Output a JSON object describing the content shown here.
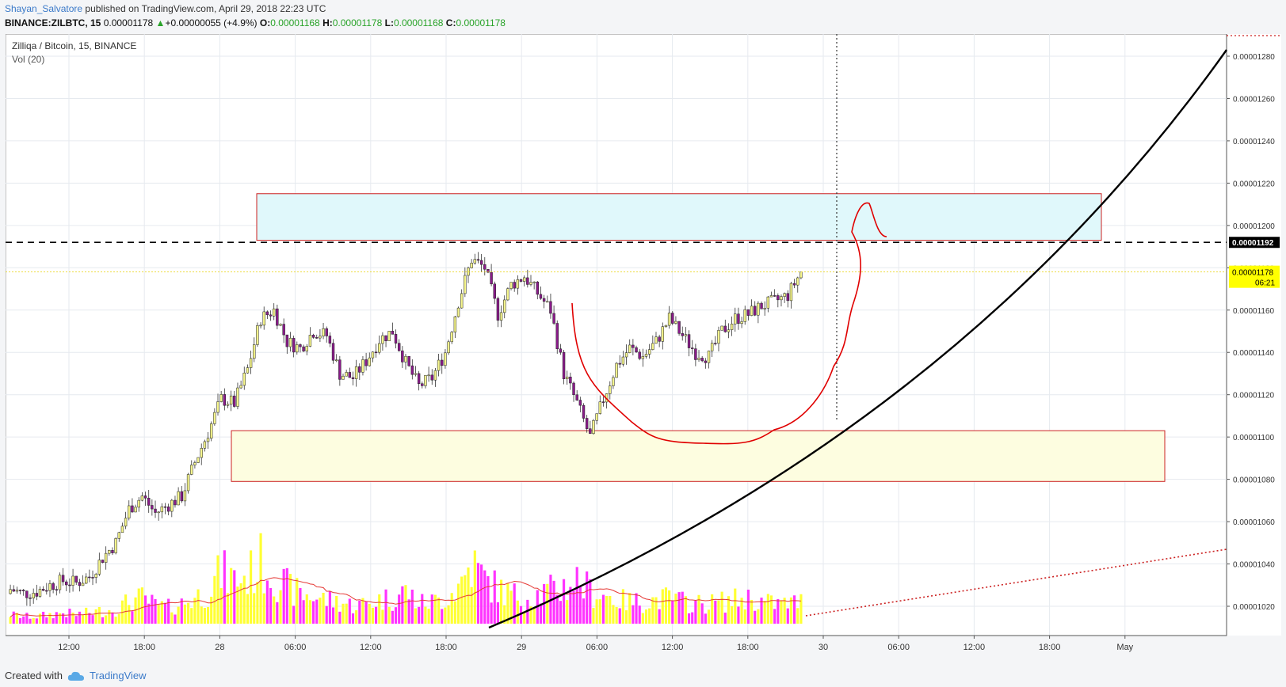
{
  "header": {
    "author": "Shayan_Salvatore",
    "published": "published on TradingView.com, April 29, 2018 22:23 UTC",
    "symbol": "BINANCE:ZILBTC, 15",
    "last": "0.00001178",
    "arrow": "▲",
    "change": "+0.00000055 (+4.9%)",
    "o_label": "O:",
    "o_value": "0.00001168",
    "h_label": "H:",
    "h_value": "0.00001178",
    "l_label": "L:",
    "l_value": "0.00001168",
    "c_label": "C:",
    "c_value": "0.00001178"
  },
  "legend": {
    "title": "Zilliqa / Bitcoin, 15, BINANCE",
    "volume": "Vol (20)"
  },
  "footer": {
    "created": "Created with",
    "brand": "TradingView"
  },
  "chart_data": {
    "type": "candlestick",
    "title": "Zilliqa / Bitcoin, 15, BINANCE",
    "price_axis_ticks": [
      "0.00001280",
      "0.00001260",
      "0.00001240",
      "0.00001220",
      "0.00001200",
      "0.00001180",
      "0.00001160",
      "0.00001140",
      "0.00001120",
      "0.00001100",
      "0.00001080",
      "0.00001060",
      "0.00001040",
      "0.00001020"
    ],
    "price_range": [
      1.011e-05,
      1.295e-05
    ],
    "time_axis_ticks": [
      "12:00",
      "18:00",
      "28",
      "06:00",
      "12:00",
      "18:00",
      "29",
      "06:00",
      "12:00",
      "18:00",
      "30",
      "06:00",
      "12:00",
      "18:00",
      "May"
    ],
    "price_path": [
      [
        0,
        1028
      ],
      [
        12,
        1026
      ],
      [
        24,
        1027
      ],
      [
        36,
        1030
      ],
      [
        48,
        1032
      ],
      [
        60,
        1031
      ],
      [
        72,
        1034
      ],
      [
        84,
        1043
      ],
      [
        96,
        1050
      ],
      [
        108,
        1066
      ],
      [
        120,
        1072
      ],
      [
        132,
        1064
      ],
      [
        144,
        1068
      ],
      [
        156,
        1072
      ],
      [
        168,
        1088
      ],
      [
        180,
        1102
      ],
      [
        192,
        1118
      ],
      [
        204,
        1116
      ],
      [
        216,
        1132
      ],
      [
        228,
        1156
      ],
      [
        240,
        1160
      ],
      [
        252,
        1145
      ],
      [
        264,
        1142
      ],
      [
        276,
        1150
      ],
      [
        288,
        1148
      ],
      [
        300,
        1130
      ],
      [
        312,
        1128
      ],
      [
        324,
        1136
      ],
      [
        336,
        1146
      ],
      [
        348,
        1150
      ],
      [
        360,
        1135
      ],
      [
        372,
        1124
      ],
      [
        384,
        1128
      ],
      [
        396,
        1140
      ],
      [
        408,
        1164
      ],
      [
        420,
        1184
      ],
      [
        432,
        1180
      ],
      [
        444,
        1158
      ],
      [
        456,
        1172
      ],
      [
        468,
        1176
      ],
      [
        480,
        1168
      ],
      [
        492,
        1160
      ],
      [
        504,
        1130
      ],
      [
        516,
        1116
      ],
      [
        528,
        1100
      ],
      [
        540,
        1118
      ],
      [
        552,
        1134
      ],
      [
        564,
        1142
      ],
      [
        576,
        1138
      ],
      [
        588,
        1145
      ],
      [
        600,
        1156
      ],
      [
        612,
        1148
      ],
      [
        624,
        1140
      ],
      [
        636,
        1138
      ],
      [
        648,
        1150
      ],
      [
        660,
        1156
      ],
      [
        672,
        1158
      ],
      [
        684,
        1162
      ],
      [
        696,
        1164
      ],
      [
        708,
        1167
      ],
      [
        720,
        1178
      ]
    ],
    "volume_path": [
      [
        0,
        5
      ],
      [
        12,
        4
      ],
      [
        24,
        4
      ],
      [
        36,
        5
      ],
      [
        48,
        6
      ],
      [
        60,
        5
      ],
      [
        72,
        6
      ],
      [
        84,
        7
      ],
      [
        96,
        8
      ],
      [
        108,
        12
      ],
      [
        120,
        14
      ],
      [
        132,
        10
      ],
      [
        144,
        9
      ],
      [
        156,
        11
      ],
      [
        168,
        14
      ],
      [
        180,
        18
      ],
      [
        192,
        28
      ],
      [
        204,
        24
      ],
      [
        216,
        26
      ],
      [
        228,
        33
      ],
      [
        240,
        26
      ],
      [
        252,
        20
      ],
      [
        264,
        16
      ],
      [
        276,
        15
      ],
      [
        288,
        13
      ],
      [
        300,
        12
      ],
      [
        312,
        10
      ],
      [
        324,
        11
      ],
      [
        336,
        13
      ],
      [
        348,
        14
      ],
      [
        360,
        18
      ],
      [
        372,
        11
      ],
      [
        384,
        12
      ],
      [
        396,
        14
      ],
      [
        408,
        20
      ],
      [
        420,
        33
      ],
      [
        432,
        24
      ],
      [
        444,
        19
      ],
      [
        456,
        16
      ],
      [
        468,
        14
      ],
      [
        480,
        16
      ],
      [
        492,
        18
      ],
      [
        504,
        20
      ],
      [
        516,
        24
      ],
      [
        528,
        18
      ],
      [
        540,
        16
      ],
      [
        552,
        13
      ],
      [
        564,
        12
      ],
      [
        576,
        12
      ],
      [
        588,
        13
      ],
      [
        600,
        14
      ],
      [
        612,
        12
      ],
      [
        624,
        11
      ],
      [
        636,
        11
      ],
      [
        648,
        12
      ],
      [
        660,
        13
      ],
      [
        672,
        14
      ],
      [
        684,
        12
      ],
      [
        696,
        11
      ],
      [
        708,
        11
      ],
      [
        720,
        12
      ]
    ],
    "levels": {
      "resistance_dashed": "0.00001192",
      "last_price": "0.00001178",
      "countdown": "06:21"
    },
    "zones": [
      {
        "name": "supply-zone",
        "from": 1.193e-05,
        "to": 1.215e-05,
        "fill": "#e0f8fb",
        "border": "#cc2222"
      },
      {
        "name": "demand-zone",
        "from": 1.079e-05,
        "to": 1.103e-05,
        "fill": "#fdfde0",
        "border": "#cc2222"
      }
    ],
    "colors": {
      "up_candle": "#f5f58c",
      "down_candle": "#8a1a8a",
      "vol_up": "#ffff33",
      "vol_down": "#ff33ff",
      "vol_ma": "#e53935",
      "projection": "#cc2222",
      "curve": "#000000"
    }
  }
}
